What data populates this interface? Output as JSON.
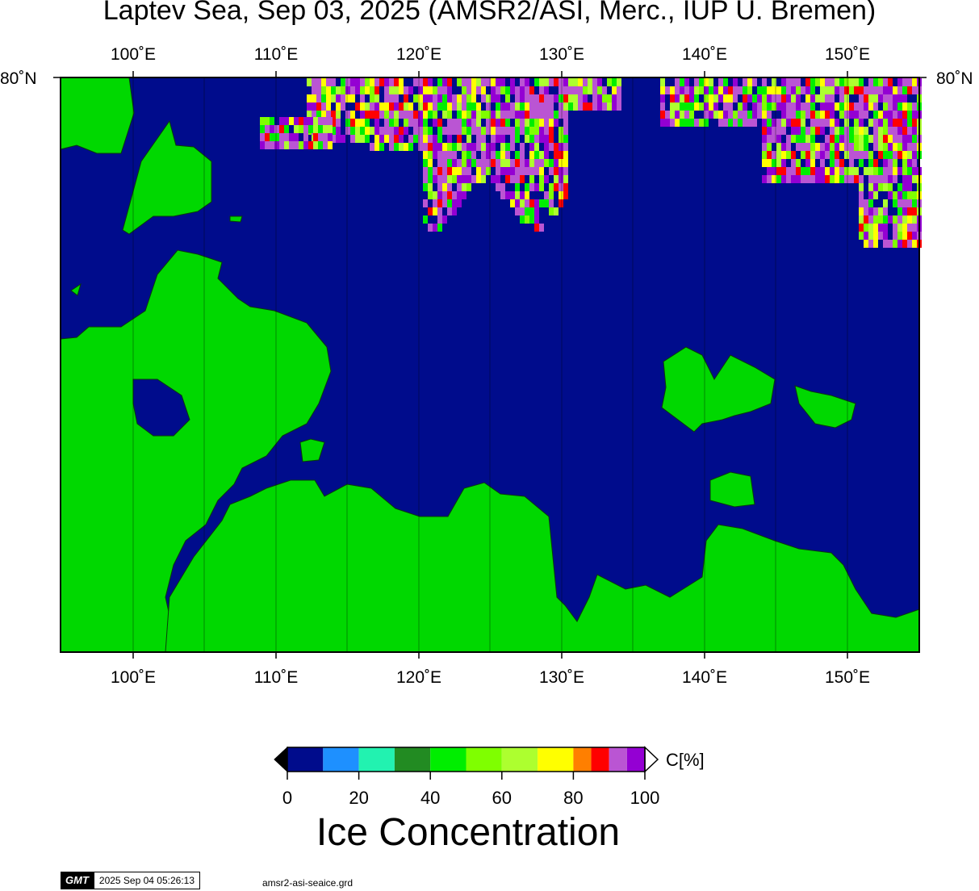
{
  "title": "Laptev Sea, Sep 03, 2025 (AMSR2/ASI, Merc., IUP U. Bremen)",
  "lon_labels": [
    "100˚E",
    "110˚E",
    "120˚E",
    "130˚E",
    "140˚E",
    "150˚E"
  ],
  "lat_label_left": "80˚N",
  "lat_label_right": "80˚N",
  "colors": {
    "ocean_open_water": "#000c8c",
    "land": "#00d800",
    "bins": [
      "#000c8c",
      "#1e90ff",
      "#22f2b0",
      "#228b22",
      "#00ee00",
      "#7fff00",
      "#adff2f",
      "#ffff00",
      "#ff7f00",
      "#ff0000",
      "#ba55d3",
      "#9400d3"
    ]
  },
  "colorbar": {
    "ticks": [
      "0",
      "20",
      "40",
      "60",
      "80",
      "100"
    ],
    "unit": "C[%]",
    "title": "Ice Concentration"
  },
  "gmt": {
    "logo": "GMT",
    "timestamp": "2025 Sep 04 05:26:13",
    "filename": "amsr2-asi-seaice.grd"
  }
}
